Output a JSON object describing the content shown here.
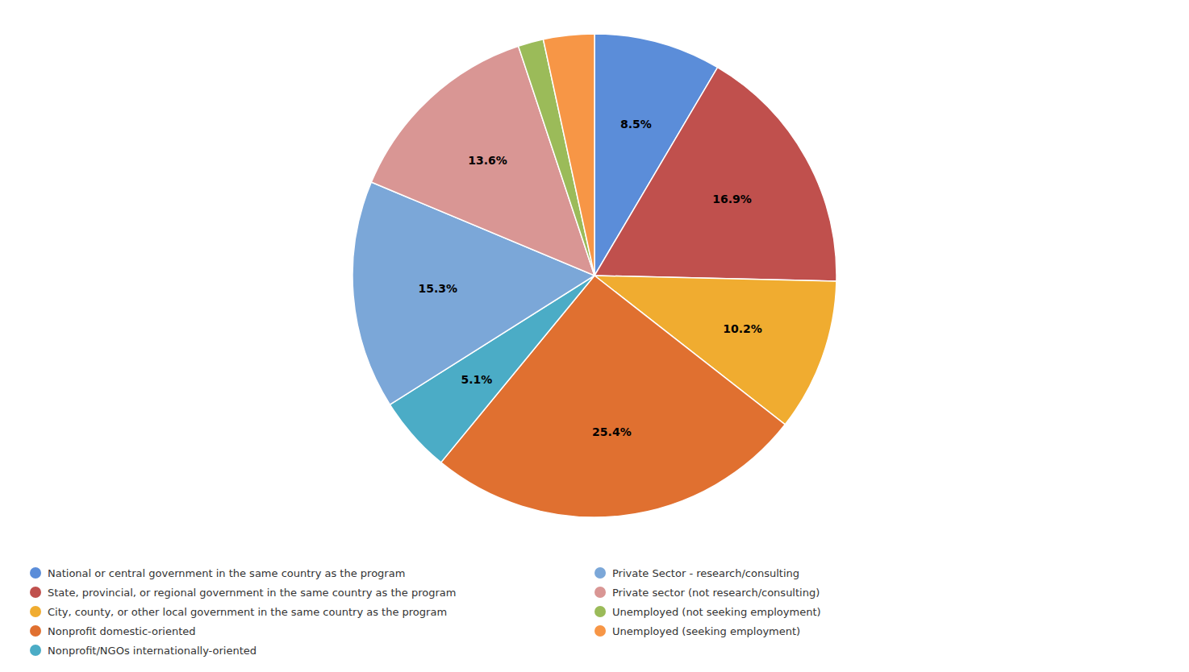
{
  "chart_data": {
    "type": "pie",
    "categories": [
      "National or central government in the same country as the program",
      "State, provincial, or regional government in the same country as the program",
      "City, county, or other local government in the same country as the program",
      "Nonprofit domestic-oriented",
      "Nonprofit/NGOs internationally-oriented",
      "Private Sector - research/consulting",
      "Private sector (not research/consulting)",
      "Unemployed (not seeking employment)",
      "Unemployed (seeking employment)"
    ],
    "values": [
      8.5,
      16.9,
      10.2,
      25.4,
      5.1,
      15.3,
      13.6,
      1.7,
      3.4
    ],
    "value_labels": [
      "8.5%",
      "16.9%",
      "10.2%",
      "25.4%",
      "5.1%",
      "15.3%",
      "13.6%",
      null,
      null
    ],
    "colors": [
      "#5B8DD9",
      "#C0504D",
      "#F0AC30",
      "#E07030",
      "#4BACC6",
      "#7BA7D8",
      "#D99694",
      "#9BBB59",
      "#F79646"
    ],
    "data_labels": true,
    "legend": "bottom"
  }
}
